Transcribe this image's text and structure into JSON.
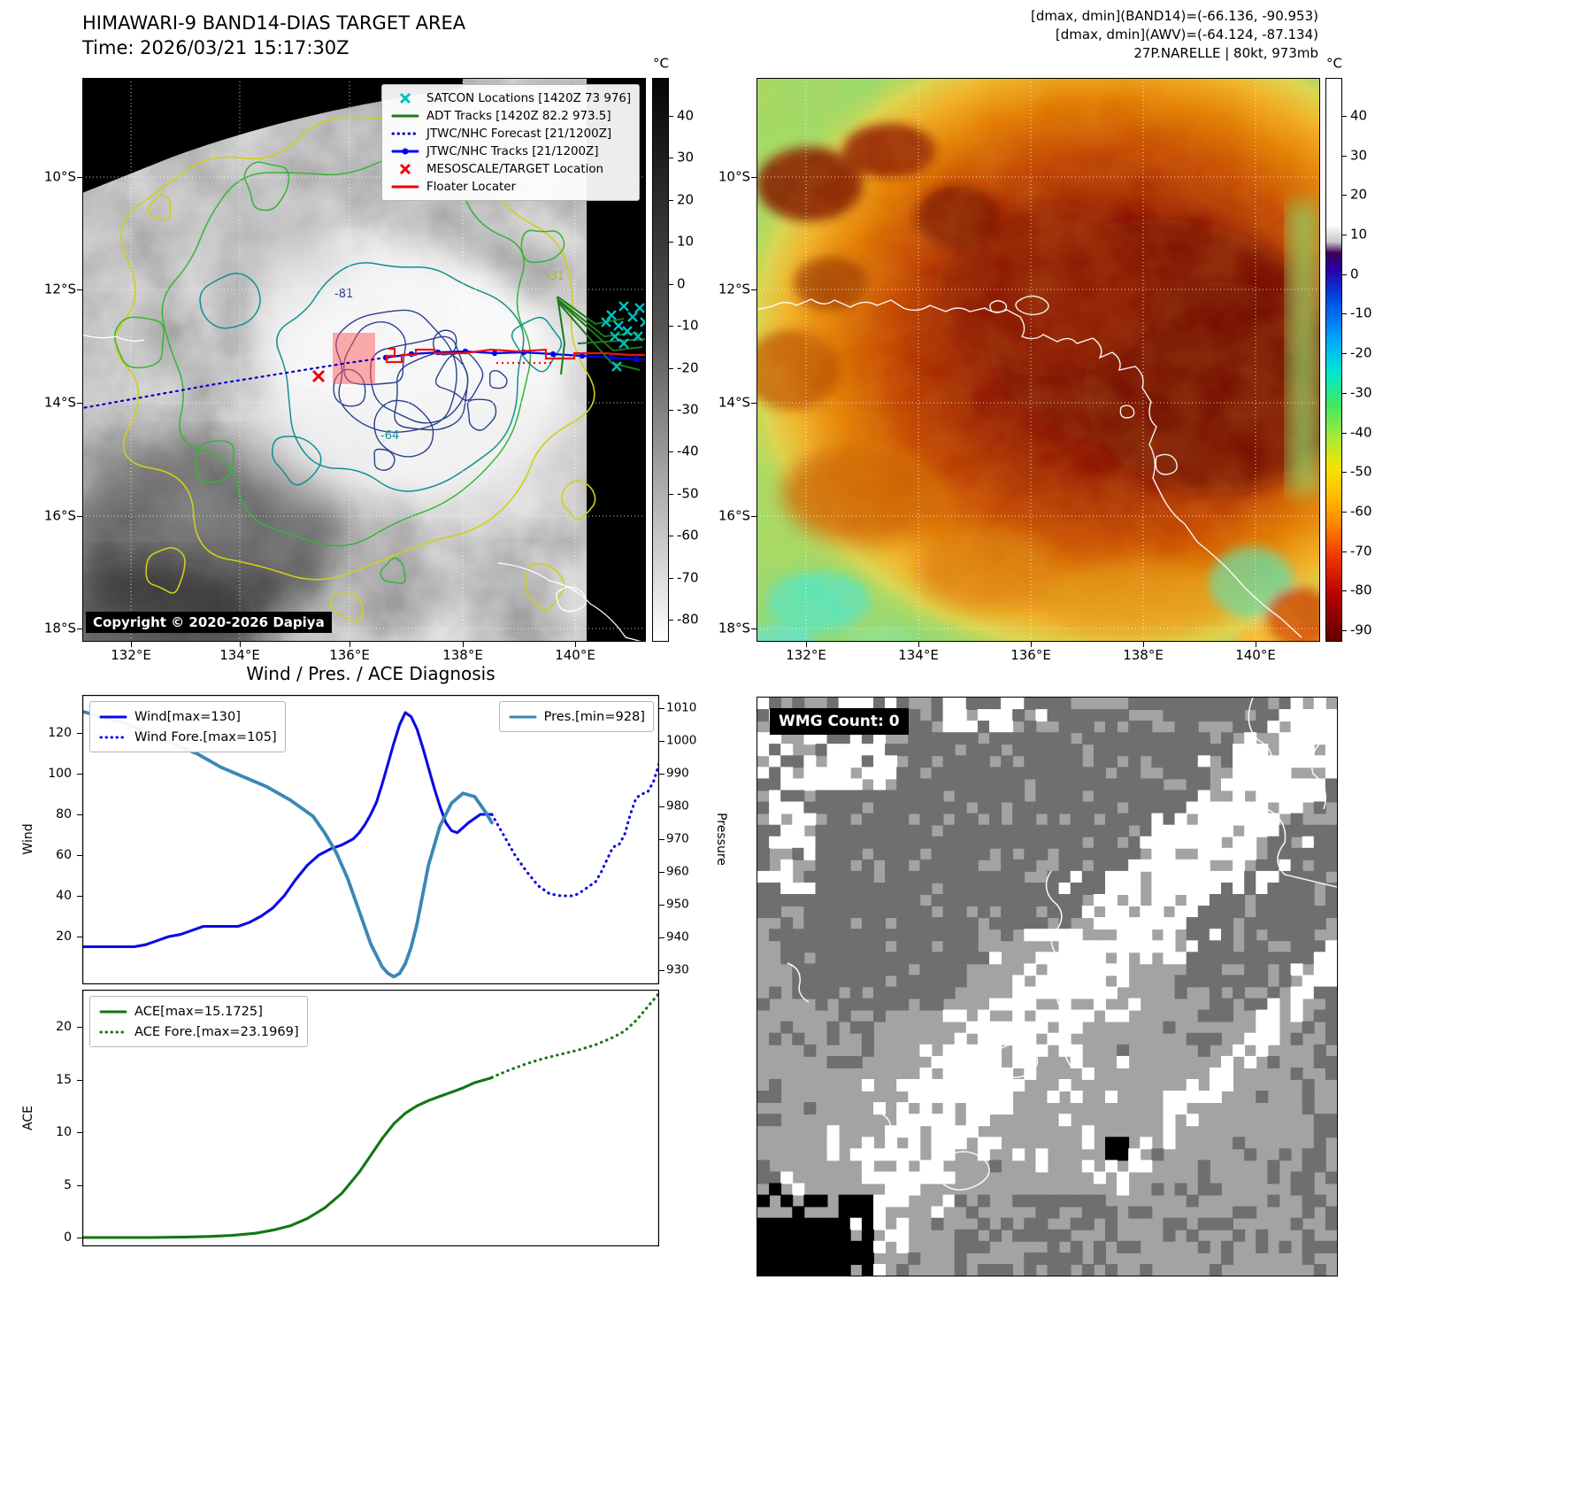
{
  "panel_band14": {
    "title": "HIMAWARI-9 BAND14-DIAS TARGET AREA",
    "subtitle": "Time: 2026/03/21 15:17:30Z",
    "copyright": "Copyright © 2020-2026 Dapiya",
    "legend": [
      {
        "label": "SATCON Locations [1420Z 73 976]",
        "marker": "x",
        "color": "#00bfbf"
      },
      {
        "label": "ADT Tracks [1420Z 82.2 973.5]",
        "marker": "line",
        "color": "#1a7a1a"
      },
      {
        "label": "JTWC/NHC Forecast [21/1200Z]",
        "marker": "dotted",
        "color": "#0000cc"
      },
      {
        "label": "JTWC/NHC Tracks [21/1200Z]",
        "marker": "line-dot",
        "color": "#0000ee"
      },
      {
        "label": "MESOSCALE/TARGET Location",
        "marker": "x",
        "color": "#ee0000"
      },
      {
        "label": "Floater Locater",
        "marker": "line",
        "color": "#ee0000"
      }
    ],
    "lat_ticks": [
      "10°S",
      "12°S",
      "14°S",
      "16°S",
      "18°S"
    ],
    "lon_ticks": [
      "132°E",
      "134°E",
      "136°E",
      "138°E",
      "140°E"
    ],
    "contour_labels": [
      {
        "text": "-81",
        "color": "#2a3f8f"
      },
      {
        "text": "-64",
        "color": "#0f9090"
      },
      {
        "text": "-31",
        "color": "#b8b800"
      }
    ],
    "colorbar": {
      "unit": "°C",
      "ticks": [
        40,
        30,
        20,
        10,
        0,
        -10,
        -20,
        -30,
        -40,
        -50,
        -60,
        -70,
        -80
      ]
    }
  },
  "panel_awv": {
    "header_lines": [
      "[dmax, dmin](BAND14)=(-66.136, -90.953)",
      "[dmax, dmin](AWV)=(-64.124, -87.134)",
      "27P.NARELLE | 80kt, 973mb"
    ],
    "lat_ticks": [
      "10°S",
      "12°S",
      "14°S",
      "16°S",
      "18°S"
    ],
    "lon_ticks": [
      "132°E",
      "134°E",
      "136°E",
      "138°E",
      "140°E"
    ],
    "colorbar": {
      "unit": "°C",
      "ticks": [
        40,
        30,
        20,
        10,
        0,
        -10,
        -20,
        -30,
        -40,
        -50,
        -60,
        -70,
        -80,
        -90
      ]
    }
  },
  "panel_diagnosis": {
    "title": "Wind / Pres. / ACE Diagnosis"
  },
  "panel_wmg": {
    "label": "WMG Count: 0",
    "palette": [
      "#000000",
      "#6f6f6f",
      "#a3a3a3",
      "#ffffff"
    ]
  },
  "chart_data": [
    {
      "type": "line",
      "title": "Wind / Pres. / ACE Diagnosis",
      "ylabel_left": "Wind",
      "ylabel_right": "Pressure",
      "y_left_ticks": [
        20,
        40,
        60,
        80,
        100,
        120
      ],
      "y_right_ticks": [
        930,
        940,
        950,
        960,
        970,
        980,
        990,
        1000,
        1010
      ],
      "ylim_left": [
        -3,
        139
      ],
      "ylim_right": [
        926,
        1014
      ],
      "x_range": [
        0,
        100
      ],
      "grid": false,
      "legend_position": "upper-left-and-upper-right",
      "series": [
        {
          "name": "Wind[max=130]",
          "axis": "left",
          "style": "solid",
          "color": "#0a0ae6",
          "x": [
            0,
            3,
            6,
            9,
            11,
            13,
            15,
            17,
            19,
            21,
            24,
            27,
            29,
            31,
            33,
            35,
            37,
            39,
            41,
            43,
            45,
            47,
            48,
            49,
            50,
            51,
            52,
            53,
            54,
            55,
            56,
            57,
            58,
            59,
            60,
            61,
            62,
            63,
            64,
            65,
            67,
            69,
            71
          ],
          "y": [
            15,
            15,
            15,
            15,
            16,
            18,
            20,
            21,
            23,
            25,
            25,
            25,
            27,
            30,
            34,
            40,
            48,
            55,
            60,
            63,
            65,
            68,
            71,
            75,
            80,
            86,
            95,
            105,
            115,
            124,
            130,
            128,
            122,
            113,
            103,
            93,
            84,
            76,
            72,
            71,
            76,
            80,
            80
          ]
        },
        {
          "name": "Wind Fore.[max=105]",
          "axis": "left",
          "style": "dotted",
          "color": "#0a0ae6",
          "x": [
            71,
            73,
            75,
            77,
            79,
            81,
            83,
            85,
            86,
            87,
            88,
            89,
            90,
            91,
            92,
            93,
            94,
            95,
            96,
            97,
            98,
            99,
            100
          ],
          "y": [
            80,
            70,
            60,
            52,
            45,
            41,
            40,
            40,
            41,
            43,
            45,
            47,
            52,
            58,
            64,
            65,
            70,
            80,
            88,
            90,
            91,
            96,
            105
          ]
        },
        {
          "name": "Pres.[min=928]",
          "axis": "right",
          "style": "solid",
          "color": "#3a87b5",
          "x": [
            0,
            4,
            8,
            12,
            16,
            20,
            24,
            28,
            32,
            36,
            40,
            42,
            44,
            46,
            48,
            50,
            52,
            53,
            54,
            55,
            56,
            57,
            58,
            59,
            60,
            62,
            64,
            66,
            68,
            70,
            71
          ],
          "y": [
            1009,
            1007,
            1005,
            1002,
            999,
            996,
            992,
            989,
            986,
            982,
            977,
            972,
            966,
            958,
            948,
            938,
            931,
            929,
            928,
            929,
            932,
            937,
            944,
            953,
            962,
            974,
            981,
            984,
            983,
            978,
            975
          ]
        }
      ]
    },
    {
      "type": "line",
      "ylabel_left": "ACE",
      "y_left_ticks": [
        0,
        5,
        10,
        15,
        20
      ],
      "ylim_left": [
        -0.5,
        23.6
      ],
      "x_range": [
        0,
        100
      ],
      "grid": false,
      "legend_position": "upper-left",
      "series": [
        {
          "name": "ACE[max=15.1725]",
          "style": "solid",
          "color": "#117711",
          "x": [
            0,
            6,
            12,
            18,
            22,
            26,
            30,
            33,
            36,
            39,
            42,
            45,
            48,
            50,
            52,
            54,
            56,
            58,
            60,
            62,
            64,
            66,
            68,
            71
          ],
          "y": [
            0,
            0,
            0,
            0.05,
            0.1,
            0.2,
            0.4,
            0.7,
            1.1,
            1.8,
            2.8,
            4.2,
            6.2,
            7.8,
            9.4,
            10.8,
            11.8,
            12.5,
            13.0,
            13.4,
            13.8,
            14.2,
            14.7,
            15.17
          ]
        },
        {
          "name": "ACE Fore.[max=23.1969]",
          "style": "dotted",
          "color": "#117711",
          "x": [
            71,
            74,
            77,
            80,
            83,
            86,
            89,
            92,
            94,
            96,
            98,
            100
          ],
          "y": [
            15.2,
            15.9,
            16.5,
            17.0,
            17.4,
            17.8,
            18.3,
            19.0,
            19.6,
            20.6,
            21.9,
            23.2
          ]
        }
      ]
    }
  ]
}
